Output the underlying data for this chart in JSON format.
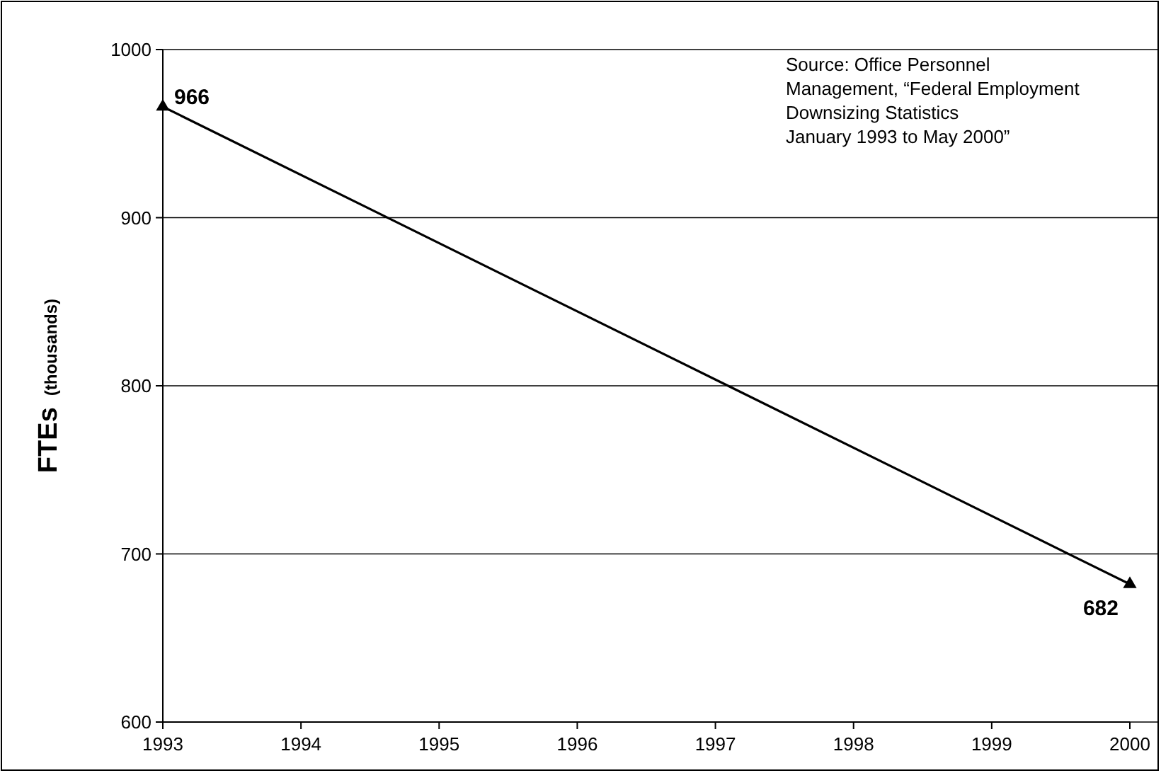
{
  "chart_data": {
    "type": "line",
    "ylabel": "FTEs (thousands)",
    "x": [
      1993,
      2000
    ],
    "series": [
      {
        "color": "#000000",
        "values": [
          966,
          682
        ]
      }
    ],
    "xlim": [
      1993,
      2000
    ],
    "xticks": [
      1993,
      1994,
      1995,
      1996,
      1997,
      1998,
      1999,
      2000
    ],
    "ylim": [
      600,
      1000
    ],
    "yticks": [
      600,
      700,
      800,
      900,
      1000
    ],
    "grid": "y",
    "marker": "triangle",
    "line_style": "solid",
    "data_labels": true,
    "annotations": [
      "Source:  Office Personnel\nManagement, “Federal Employment\nDownsizing Statistics\nJanuary 1993 to May 2000”"
    ]
  }
}
